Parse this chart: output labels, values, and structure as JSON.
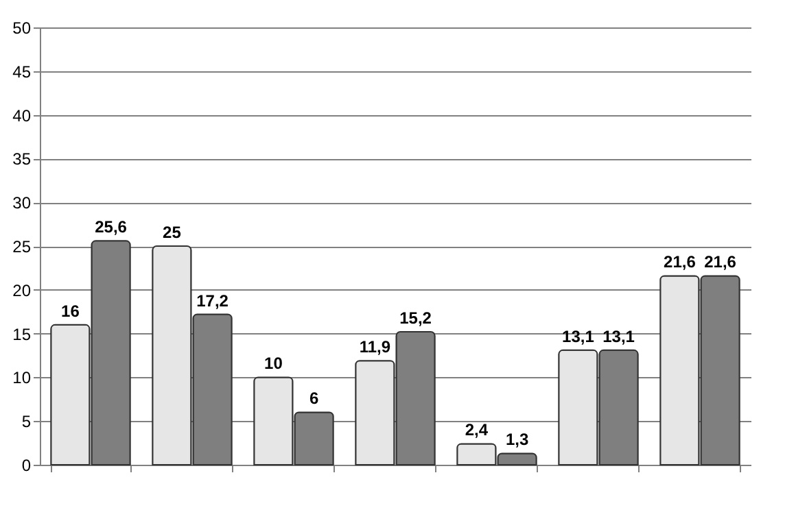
{
  "chart_data": {
    "type": "bar",
    "categories": [
      null,
      null,
      null,
      null,
      null,
      null,
      null
    ],
    "series": [
      {
        "color": "#e6e6e6",
        "values": [
          16,
          25,
          10,
          11.9,
          2.4,
          13.1,
          21.6
        ],
        "value_labels": [
          "16",
          "25",
          "10",
          "11,9",
          "2,4",
          "13,1",
          "21,6"
        ]
      },
      {
        "color": "#7f7f7f",
        "values": [
          25.6,
          17.2,
          6,
          15.2,
          1.3,
          13.1,
          21.6
        ],
        "value_labels": [
          "25,6",
          "17,2",
          "6",
          "15,2",
          "1,3",
          "13,1",
          "21,6"
        ]
      }
    ],
    "ylim": [
      0,
      50
    ],
    "yticks": [
      0,
      5,
      10,
      15,
      20,
      25,
      30,
      35,
      40,
      45,
      50
    ],
    "grid": "y",
    "legend": false
  }
}
